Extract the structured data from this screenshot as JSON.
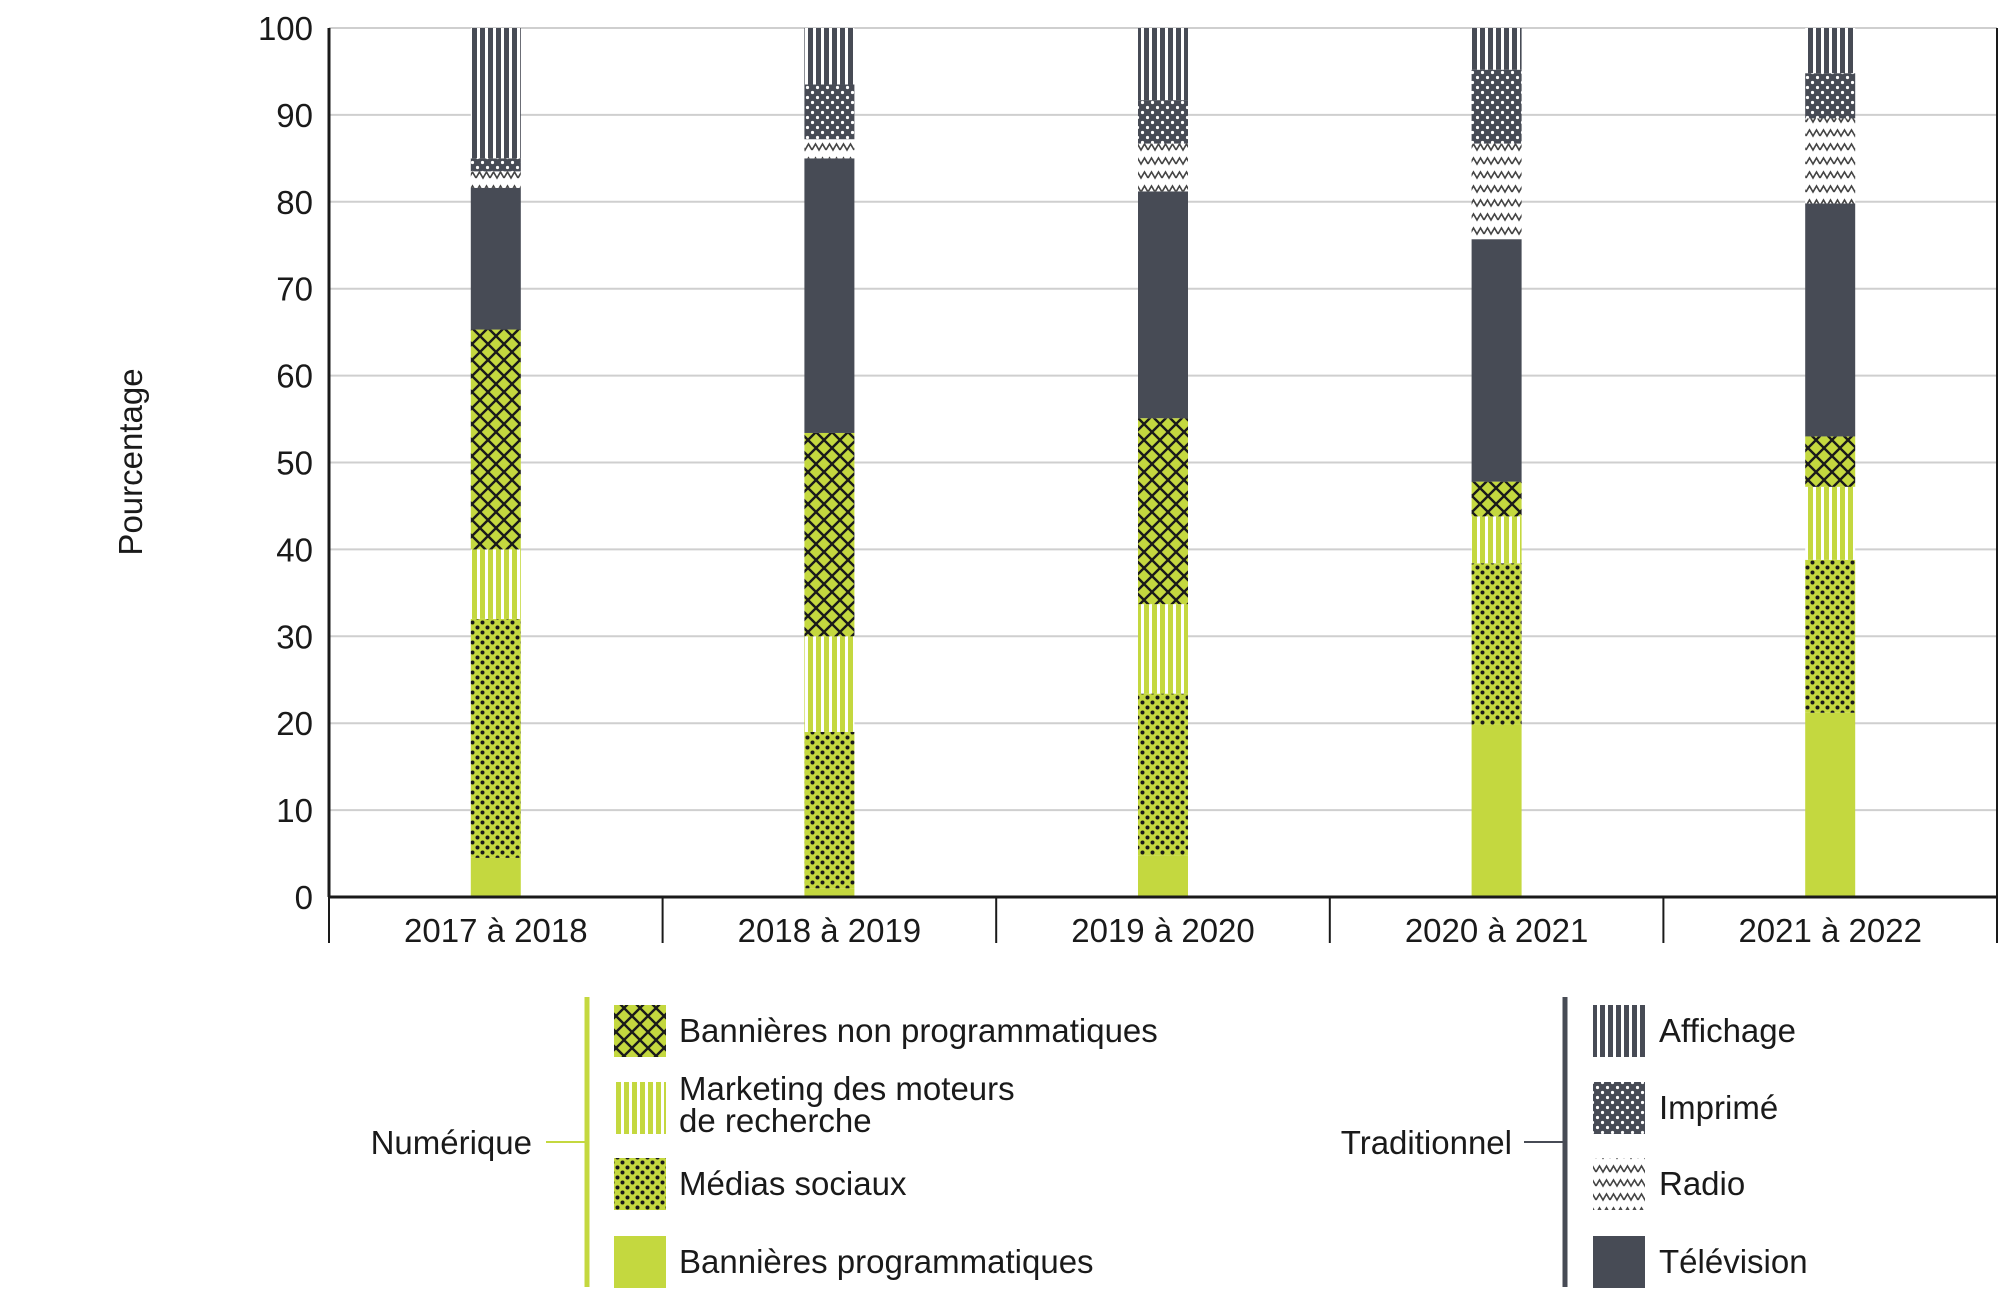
{
  "chart_data": {
    "type": "bar",
    "stacked": true,
    "ylabel": "Pourcentage",
    "xlabel": "",
    "ylim": [
      0,
      100
    ],
    "yticks": [
      0,
      10,
      20,
      30,
      40,
      50,
      60,
      70,
      80,
      90,
      100
    ],
    "grid": true,
    "categories": [
      "2017 à 2018",
      "2018 à 2019",
      "2019 à 2020",
      "2020 à 2021",
      "2021 à 2022"
    ],
    "series": [
      {
        "name": "Bannières programmatiques",
        "group": "Numérique",
        "color": "#c4d83f",
        "pattern": "solid",
        "values": [
          4.5,
          1.0,
          4.8,
          19.8,
          21.2
        ]
      },
      {
        "name": "Médias sociaux",
        "group": "Numérique",
        "color": "#c4d83f",
        "pattern": "dots",
        "values": [
          27.5,
          18.0,
          18.6,
          18.6,
          17.6
        ]
      },
      {
        "name": "Marketing des moteurs de recherche",
        "group": "Numérique",
        "color": "#c4d83f",
        "pattern": "vlines",
        "values": [
          8.0,
          11.0,
          10.3,
          5.4,
          8.4
        ]
      },
      {
        "name": "Bannières non programmatiques",
        "group": "Numérique",
        "color": "#c4d83f",
        "pattern": "crosshatch",
        "values": [
          25.3,
          23.4,
          21.4,
          4.0,
          5.8
        ]
      },
      {
        "name": "Télévision",
        "group": "Traditionnel",
        "color": "#474b55",
        "pattern": "solid",
        "values": [
          16.3,
          31.6,
          26.1,
          27.9,
          26.8
        ]
      },
      {
        "name": "Radio",
        "group": "Traditionnel",
        "color": "#d9d9d9",
        "pattern": "zigzag",
        "values": [
          1.9,
          2.2,
          5.5,
          11.0,
          9.8
        ]
      },
      {
        "name": "Imprimé",
        "group": "Traditionnel",
        "color": "#474b55",
        "pattern": "dots",
        "values": [
          1.5,
          6.3,
          5.0,
          8.5,
          5.2
        ]
      },
      {
        "name": "Affichage",
        "group": "Traditionnel",
        "color": "#474b55",
        "pattern": "vlines",
        "values": [
          15.0,
          6.5,
          8.3,
          4.8,
          5.2
        ]
      }
    ],
    "legend": {
      "placement": "bottom",
      "groups": [
        {
          "label": "Numérique",
          "items": [
            "Bannières non programmatiques",
            "Marketing des moteurs de recherche",
            "Médias sociaux",
            "Bannières programmatiques"
          ]
        },
        {
          "label": "Traditionnel",
          "items": [
            "Affichage",
            "Imprimé",
            "Radio",
            "Télévision"
          ]
        }
      ],
      "line_breaks": {
        "Marketing des moteurs de recherche": [
          "Marketing des moteurs",
          "de recherche"
        ]
      }
    }
  }
}
